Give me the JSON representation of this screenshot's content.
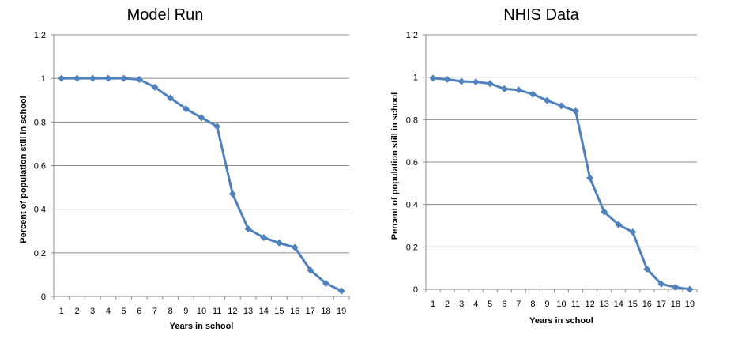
{
  "chart_data": [
    {
      "type": "line",
      "title": "Model Run",
      "xlabel": "Years in school",
      "ylabel": "Percent of population still in school",
      "categories": [
        "1",
        "2",
        "3",
        "4",
        "5",
        "6",
        "7",
        "8",
        "9",
        "10",
        "11",
        "12",
        "13",
        "14",
        "15",
        "16",
        "17",
        "18",
        "19"
      ],
      "ylim": [
        0,
        1.2
      ],
      "yticks": [
        "0",
        "0.2",
        "0.4",
        "0.6",
        "0.8",
        "1",
        "1.2"
      ],
      "grid": true,
      "legend": "none",
      "series_color": "#4f81bd",
      "series": [
        {
          "name": "Model Run",
          "values": [
            1.0,
            1.0,
            1.0,
            1.0,
            1.0,
            0.995,
            0.96,
            0.91,
            0.86,
            0.82,
            0.78,
            0.47,
            0.31,
            0.27,
            0.245,
            0.225,
            0.12,
            0.06,
            0.025
          ]
        }
      ]
    },
    {
      "type": "line",
      "title": "NHIS Data",
      "xlabel": "Years in school",
      "ylabel": "Percent of population still in school",
      "categories": [
        "1",
        "2",
        "3",
        "4",
        "5",
        "6",
        "7",
        "8",
        "9",
        "10",
        "11",
        "12",
        "13",
        "14",
        "15",
        "16",
        "17",
        "18",
        "19"
      ],
      "ylim": [
        0,
        1.2
      ],
      "yticks": [
        "0",
        "0.2",
        "0.4",
        "0.6",
        "0.8",
        "1",
        "1.2"
      ],
      "grid": true,
      "legend": "none",
      "series_color": "#4f81bd",
      "series": [
        {
          "name": "NHIS Data",
          "values": [
            0.995,
            0.99,
            0.98,
            0.978,
            0.97,
            0.945,
            0.94,
            0.92,
            0.89,
            0.865,
            0.84,
            0.525,
            0.365,
            0.305,
            0.27,
            0.095,
            0.025,
            0.01,
            0.0
          ]
        }
      ]
    }
  ]
}
